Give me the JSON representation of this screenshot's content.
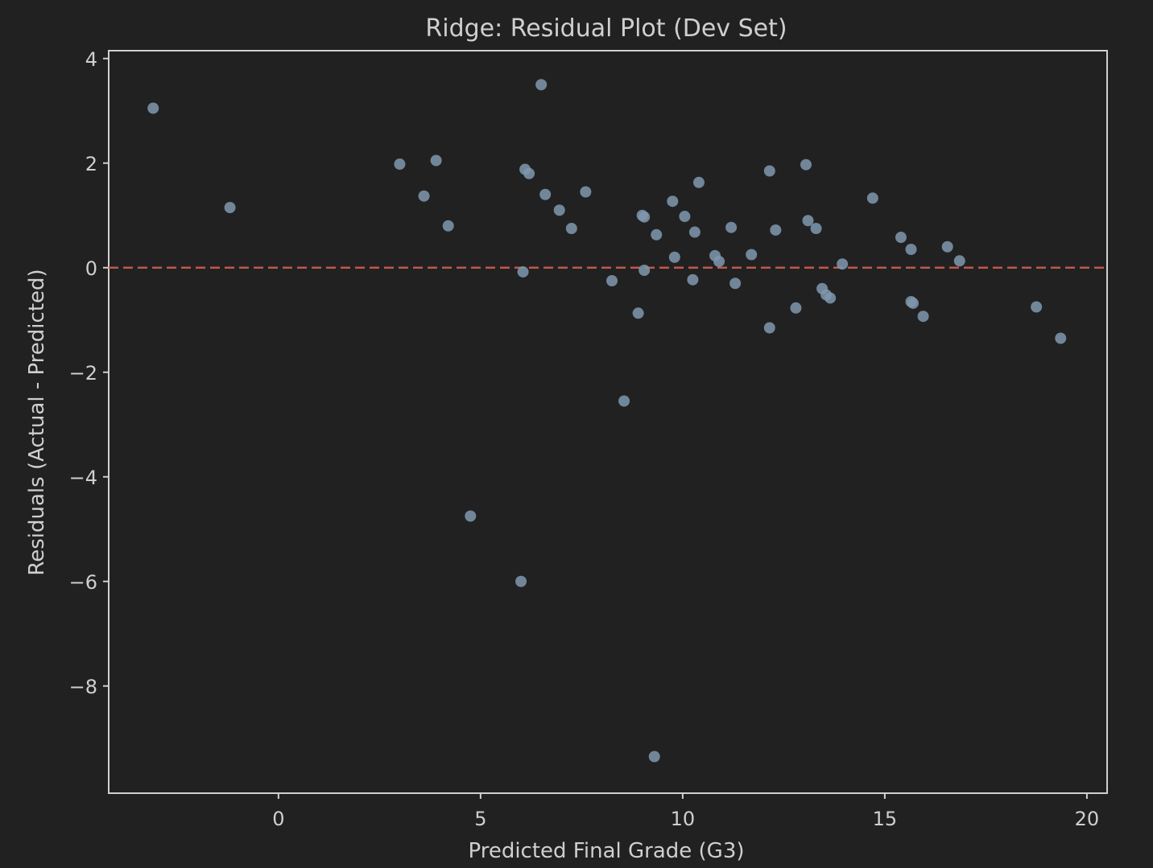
{
  "chart_data": {
    "type": "scatter",
    "title": "Ridge: Residual Plot (Dev Set)",
    "xlabel": "Predicted Final Grade (G3)",
    "ylabel": "Residuals (Actual - Predicted)",
    "xlim": [
      -4.2,
      20.5
    ],
    "ylim": [
      -10.05,
      4.15
    ],
    "xticks": [
      0,
      5,
      10,
      15,
      20
    ],
    "xtick_labels": [
      "0",
      "5",
      "10",
      "15",
      "20"
    ],
    "yticks": [
      4,
      2,
      0,
      -2,
      -4,
      -6,
      -8
    ],
    "ytick_labels": [
      "4",
      "2",
      "0",
      "−2",
      "−4",
      "−6",
      "−8"
    ],
    "reference_line": {
      "y": 0,
      "style": "dashed",
      "color": "#c0574a"
    },
    "grid": false,
    "colors": {
      "background": "#212121",
      "axes": "#d0d0d0",
      "text": "#cfcfcf",
      "points": "#7f98ae"
    },
    "points": [
      {
        "x": -3.1,
        "y": 3.05
      },
      {
        "x": -1.2,
        "y": 1.15
      },
      {
        "x": 3.0,
        "y": 1.98
      },
      {
        "x": 3.6,
        "y": 1.37
      },
      {
        "x": 3.9,
        "y": 2.05
      },
      {
        "x": 4.2,
        "y": 0.8
      },
      {
        "x": 4.75,
        "y": -4.75
      },
      {
        "x": 6.0,
        "y": -6.0
      },
      {
        "x": 6.05,
        "y": -0.08
      },
      {
        "x": 6.1,
        "y": 1.88
      },
      {
        "x": 6.2,
        "y": 1.8
      },
      {
        "x": 6.5,
        "y": 3.5
      },
      {
        "x": 6.6,
        "y": 1.4
      },
      {
        "x": 6.95,
        "y": 1.1
      },
      {
        "x": 7.25,
        "y": 0.75
      },
      {
        "x": 7.6,
        "y": 1.45
      },
      {
        "x": 8.25,
        "y": -0.25
      },
      {
        "x": 8.55,
        "y": -2.55
      },
      {
        "x": 8.9,
        "y": -0.87
      },
      {
        "x": 9.0,
        "y": 1.0
      },
      {
        "x": 9.05,
        "y": 0.97
      },
      {
        "x": 9.05,
        "y": -0.05
      },
      {
        "x": 9.3,
        "y": -9.35
      },
      {
        "x": 9.35,
        "y": 0.63
      },
      {
        "x": 9.75,
        "y": 1.27
      },
      {
        "x": 9.8,
        "y": 0.2
      },
      {
        "x": 10.05,
        "y": 0.98
      },
      {
        "x": 10.25,
        "y": -0.23
      },
      {
        "x": 10.3,
        "y": 0.68
      },
      {
        "x": 10.4,
        "y": 1.63
      },
      {
        "x": 10.8,
        "y": 0.23
      },
      {
        "x": 10.9,
        "y": 0.12
      },
      {
        "x": 11.2,
        "y": 0.77
      },
      {
        "x": 11.3,
        "y": -0.3
      },
      {
        "x": 11.7,
        "y": 0.25
      },
      {
        "x": 12.15,
        "y": 1.85
      },
      {
        "x": 12.15,
        "y": -1.15
      },
      {
        "x": 12.3,
        "y": 0.72
      },
      {
        "x": 12.8,
        "y": -0.77
      },
      {
        "x": 13.05,
        "y": 1.97
      },
      {
        "x": 13.1,
        "y": 0.9
      },
      {
        "x": 13.3,
        "y": 0.75
      },
      {
        "x": 13.45,
        "y": -0.4
      },
      {
        "x": 13.55,
        "y": -0.52
      },
      {
        "x": 13.65,
        "y": -0.58
      },
      {
        "x": 13.95,
        "y": 0.07
      },
      {
        "x": 14.7,
        "y": 1.33
      },
      {
        "x": 15.4,
        "y": 0.58
      },
      {
        "x": 15.65,
        "y": 0.35
      },
      {
        "x": 15.65,
        "y": -0.65
      },
      {
        "x": 15.7,
        "y": -0.68
      },
      {
        "x": 15.95,
        "y": -0.93
      },
      {
        "x": 16.55,
        "y": 0.4
      },
      {
        "x": 16.85,
        "y": 0.13
      },
      {
        "x": 18.75,
        "y": -0.75
      },
      {
        "x": 19.35,
        "y": -1.35
      }
    ]
  }
}
